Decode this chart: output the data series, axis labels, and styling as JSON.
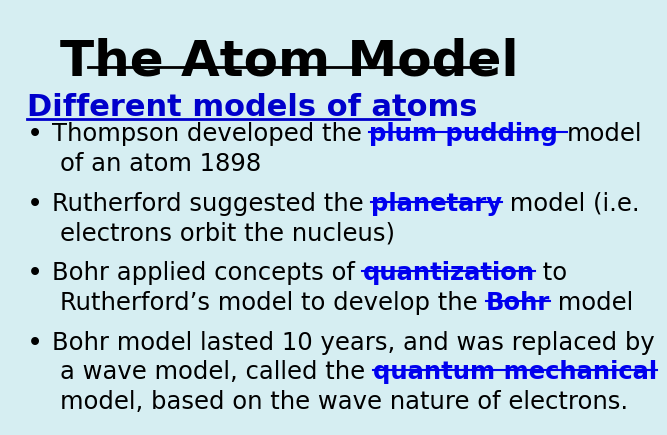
{
  "title": "The Atom Model",
  "title_color": "#000000",
  "title_fontsize": 36,
  "subtitle": "Different models of atoms",
  "subtitle_color": "#0000CC",
  "subtitle_fontsize": 22,
  "background_color": "#d6eef2",
  "bullet_color": "#000000",
  "bullet_fontsize": 17.5,
  "bullets": [
    {
      "lines": [
        [
          {
            "text": "Thompson developed the ",
            "bold": false,
            "underline": false,
            "color": "#000000"
          },
          {
            "text": "plum pudding ",
            "bold": true,
            "underline": true,
            "color": "#0000EE"
          },
          {
            "text": "model",
            "bold": false,
            "underline": false,
            "color": "#000000"
          }
        ],
        [
          {
            "text": "of an atom 1898",
            "bold": false,
            "underline": false,
            "color": "#000000"
          }
        ]
      ]
    },
    {
      "lines": [
        [
          {
            "text": "Rutherford suggested the ",
            "bold": false,
            "underline": false,
            "color": "#000000"
          },
          {
            "text": "planetary",
            "bold": true,
            "underline": true,
            "color": "#0000EE"
          },
          {
            "text": " model (i.e.",
            "bold": false,
            "underline": false,
            "color": "#000000"
          }
        ],
        [
          {
            "text": "electrons orbit the nucleus)",
            "bold": false,
            "underline": false,
            "color": "#000000"
          }
        ]
      ]
    },
    {
      "lines": [
        [
          {
            "text": "Bohr applied concepts of ",
            "bold": false,
            "underline": false,
            "color": "#000000"
          },
          {
            "text": "quantization",
            "bold": true,
            "underline": true,
            "color": "#0000EE"
          },
          {
            "text": " to",
            "bold": false,
            "underline": false,
            "color": "#000000"
          }
        ],
        [
          {
            "text": "Rutherford’s model to develop the ",
            "bold": false,
            "underline": false,
            "color": "#000000"
          },
          {
            "text": "Bohr",
            "bold": true,
            "underline": true,
            "color": "#0000EE"
          },
          {
            "text": " model",
            "bold": false,
            "underline": false,
            "color": "#000000"
          }
        ]
      ]
    },
    {
      "lines": [
        [
          {
            "text": "Bohr model lasted 10 years, and was replaced by",
            "bold": false,
            "underline": false,
            "color": "#000000"
          }
        ],
        [
          {
            "text": "a wave model, called the ",
            "bold": false,
            "underline": false,
            "color": "#000000"
          },
          {
            "text": "quantum mechanical",
            "bold": true,
            "underline": true,
            "color": "#0000EE"
          }
        ],
        [
          {
            "text": "model, based on the wave nature of electrons.",
            "bold": false,
            "underline": false,
            "color": "#000000"
          }
        ]
      ]
    }
  ]
}
